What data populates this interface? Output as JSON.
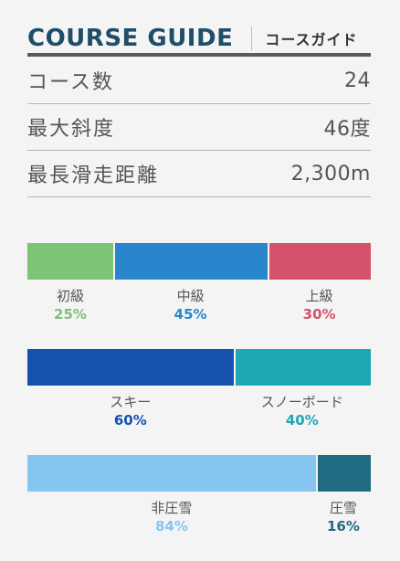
{
  "header": {
    "title_en": "COURSE GUIDE",
    "title_jp": "コースガイド"
  },
  "stats": [
    {
      "label": "コース数",
      "value": "24"
    },
    {
      "label": "最大斜度",
      "value": "46度"
    },
    {
      "label": "最長滑走距離",
      "value": "2,300m"
    }
  ],
  "difficulty": [
    {
      "label": "初級",
      "percent_text": "25%",
      "percent": 25,
      "color": "#7dc474"
    },
    {
      "label": "中級",
      "percent_text": "45%",
      "percent": 45,
      "color": "#2986cc"
    },
    {
      "label": "上級",
      "percent_text": "30%",
      "percent": 30,
      "color": "#d4536b"
    }
  ],
  "users": [
    {
      "label": "スキー",
      "percent_text": "60%",
      "percent": 60,
      "color": "#1552b0"
    },
    {
      "label": "スノーボード",
      "percent_text": "40%",
      "percent": 40,
      "color": "#1fa8b4"
    }
  ],
  "grooming": [
    {
      "label": "非圧雪",
      "percent_text": "84%",
      "percent": 84,
      "color": "#86c5ef"
    },
    {
      "label": "圧雪",
      "percent_text": "16%",
      "percent": 16,
      "color": "#1f6b82"
    }
  ]
}
